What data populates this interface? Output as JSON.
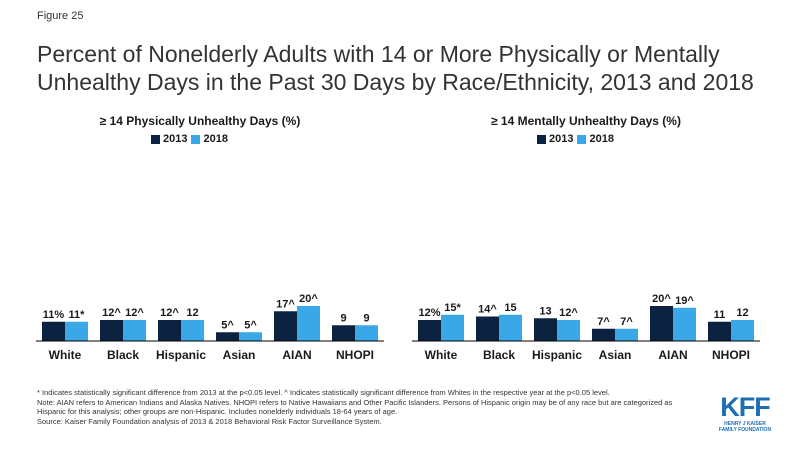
{
  "figure_label": "Figure 25",
  "title": "Percent of Nonelderly Adults with 14 or More Physically or Mentally Unhealthy Days in the Past 30 Days by Race/Ethnicity, 2013 and 2018",
  "colors": {
    "y2013": "#0b2240",
    "y2018": "#3aa8e6",
    "axis": "#000000"
  },
  "chart_data": [
    {
      "type": "bar",
      "title": "≥ 14 Physically Unhealthy Days (%)",
      "categories": [
        "White",
        "Black",
        "Hispanic",
        "Asian",
        "AIAN",
        "NHOPI"
      ],
      "series": [
        {
          "name": "2013",
          "values": [
            11,
            12,
            12,
            5,
            17,
            9
          ],
          "labels": [
            "11%",
            "12^",
            "12^",
            "5^",
            "17^",
            "9"
          ]
        },
        {
          "name": "2018",
          "values": [
            11,
            12,
            12,
            5,
            20,
            9
          ],
          "labels": [
            "11*",
            "12^",
            "12",
            "5^",
            "20^",
            "9"
          ]
        }
      ],
      "legend_position": "top-center"
    },
    {
      "type": "bar",
      "title": "≥ 14 Mentally Unhealthy Days (%)",
      "categories": [
        "White",
        "Black",
        "Hispanic",
        "Asian",
        "AIAN",
        "NHOPI"
      ],
      "series": [
        {
          "name": "2013",
          "values": [
            12,
            14,
            13,
            7,
            20,
            11
          ],
          "labels": [
            "12%",
            "14^",
            "13",
            "7^",
            "20^",
            "11"
          ]
        },
        {
          "name": "2018",
          "values": [
            15,
            15,
            12,
            7,
            19,
            12
          ],
          "labels": [
            "15*",
            "15",
            "12^",
            "7^",
            "19^",
            "12"
          ]
        }
      ],
      "legend_position": "top-center"
    }
  ],
  "footnotes": [
    "* Indicates statistically significant difference from 2013 at the p<0.05 level. ^ Indicates statistically significant difference from Whites in the respective year at the p<0.05 level.",
    "Note: AIAN refers to American Indians and Alaska Natives. NHOPI refers to Native Hawaiians and Other Pacific Islanders. Persons of Hispanic origin may be of any race but are categorized as Hispanic for this analysis; other groups are non-Hispanic. Includes nonelderly individuals 18-64 years of age.",
    "Source: Kaiser Family Foundation analysis of 2013 & 2018 Behavioral Risk Factor Surveillance System."
  ],
  "logo": {
    "name": "KFF",
    "line1": "HENRY J KAISER",
    "line2": "FAMILY FOUNDATION"
  }
}
